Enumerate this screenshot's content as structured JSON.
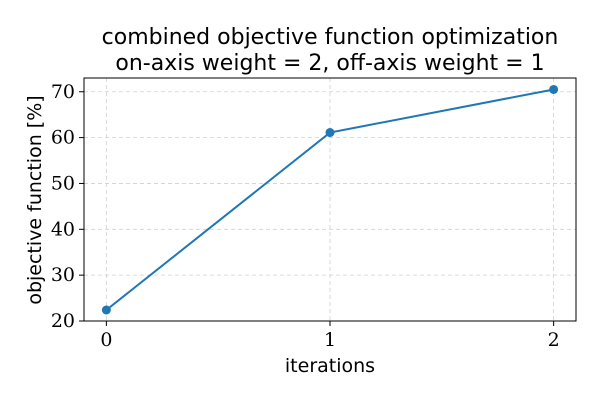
{
  "chart_data": {
    "type": "line",
    "title": "combined objective function optimization",
    "subtitle": "on-axis weight = 2, off-axis weight = 1",
    "xlabel": "iterations",
    "ylabel": "objective function [%]",
    "x": [
      0,
      1,
      2
    ],
    "xticks": [
      "0",
      "1",
      "2"
    ],
    "xlim": [
      -0.1,
      2.1
    ],
    "ylim": [
      20,
      73
    ],
    "yticks": [
      "20",
      "30",
      "40",
      "50",
      "60",
      "70"
    ],
    "series": [
      {
        "values": [
          22.4,
          61.1,
          70.5
        ],
        "color": "#1f77b4"
      }
    ],
    "grid": true
  }
}
